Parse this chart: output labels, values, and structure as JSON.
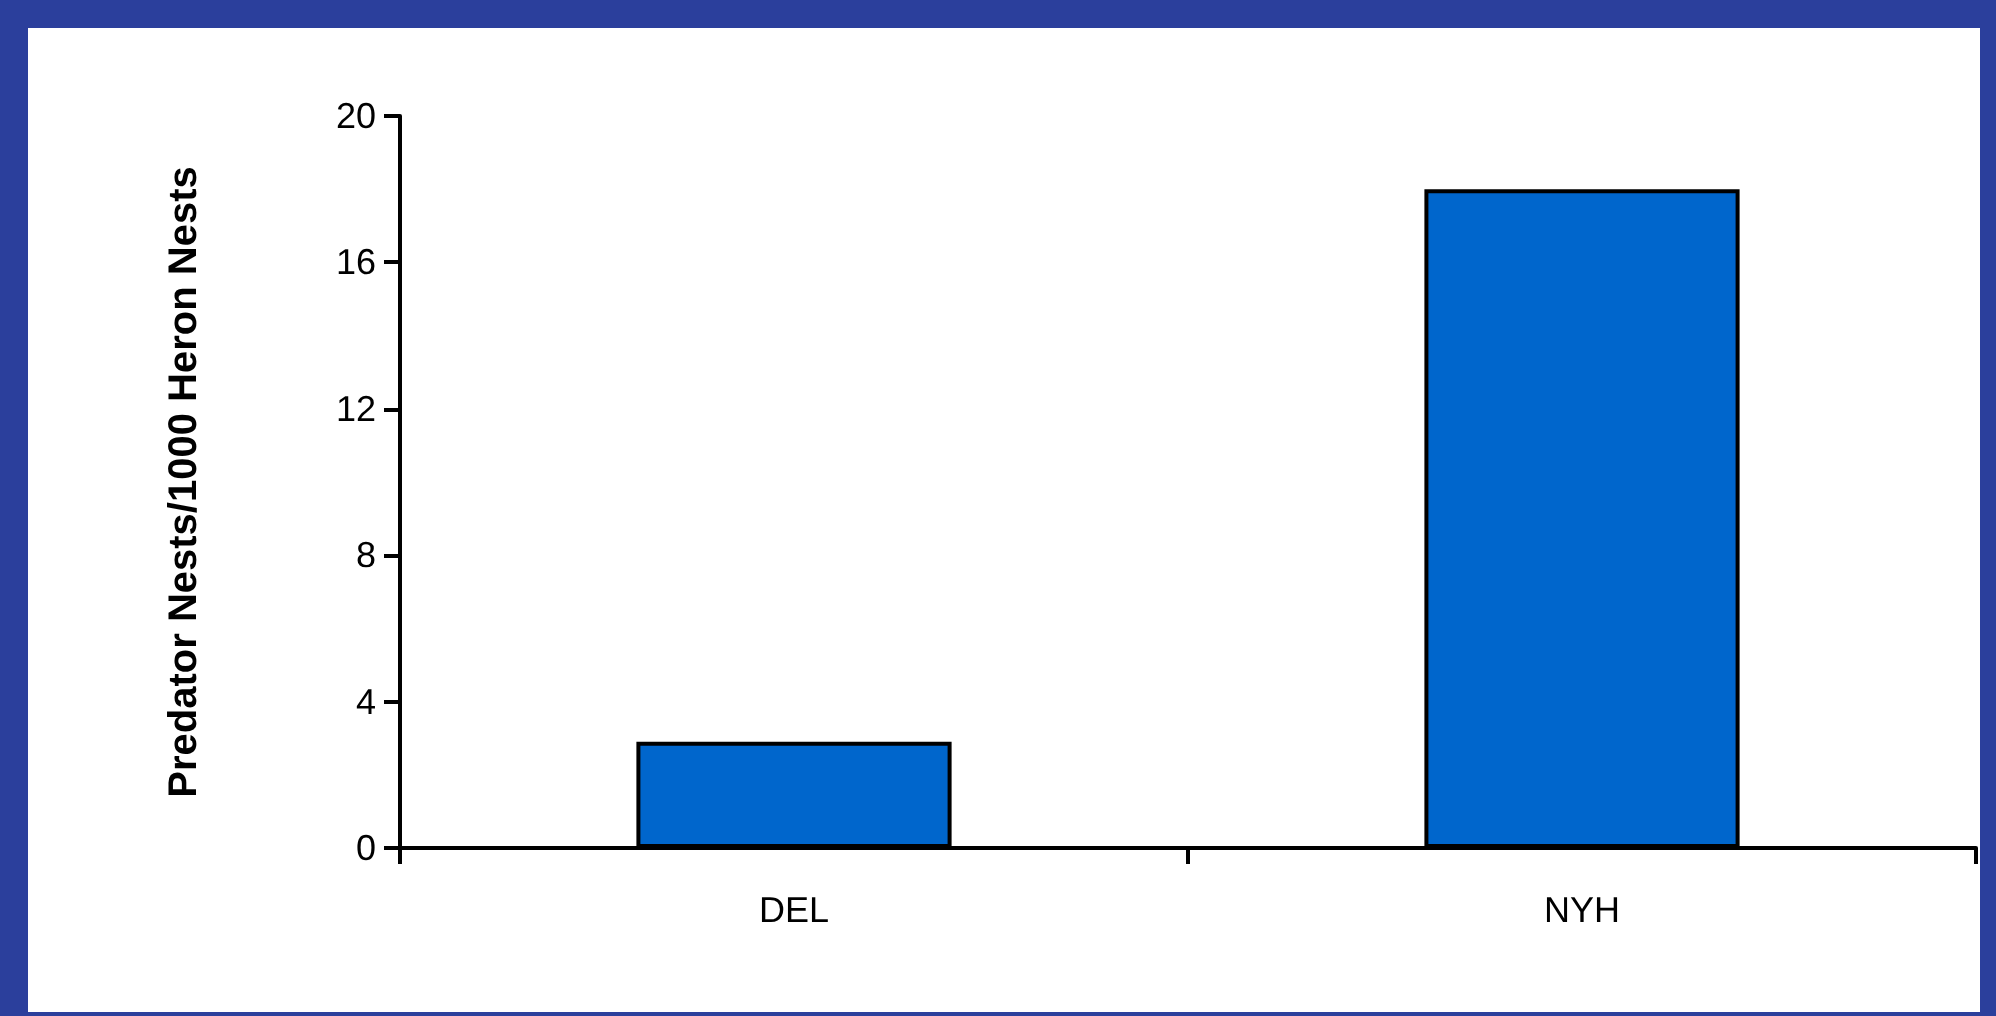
{
  "chart_data": {
    "type": "bar",
    "ylabel": "Predator Nests/1000 Heron Nests",
    "categories": [
      "DEL",
      "NYH"
    ],
    "values": [
      2.9,
      18.0
    ],
    "color": "#0066cc",
    "ylim": [
      0,
      20
    ],
    "yticks": [
      0,
      4,
      8,
      12,
      16,
      20
    ],
    "grid": false
  }
}
